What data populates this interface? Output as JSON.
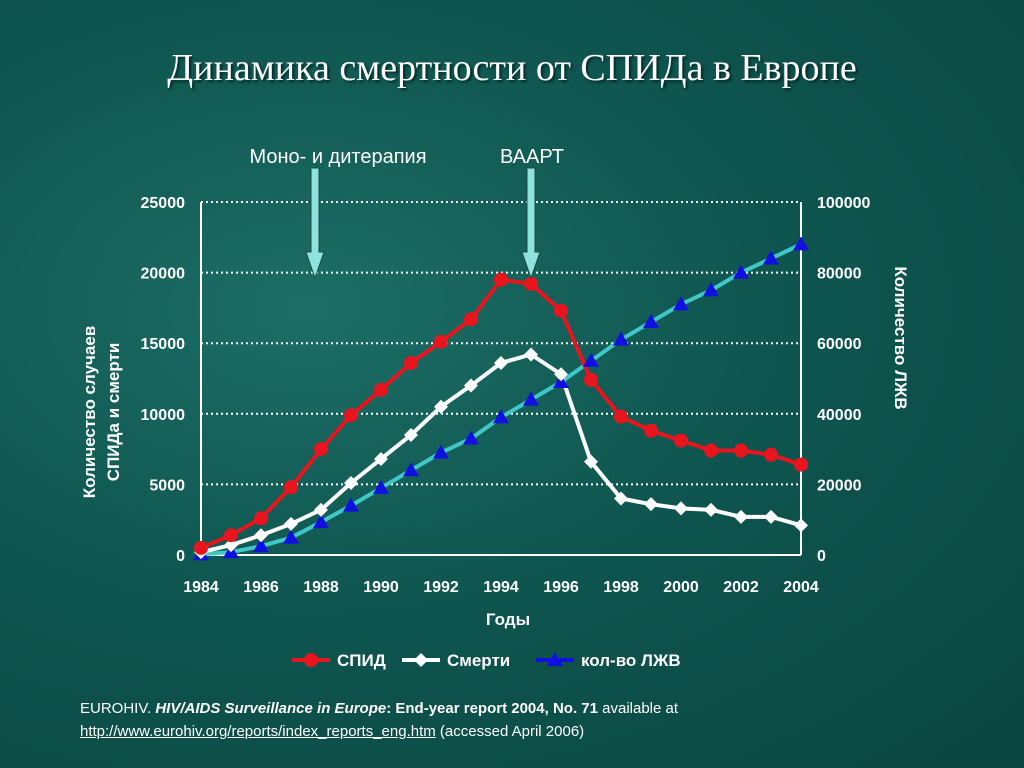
{
  "title": "Динамика смертности от СПИДа в Европе",
  "annotations": {
    "mono": "Моно- и дитерапия",
    "haart": "ВААРТ"
  },
  "colors": {
    "aids": "#e8141e",
    "deaths": "#ffffff",
    "plhiv": "#1010e0",
    "plhiv_line": "#40c8c8",
    "grid": "#ffffff"
  },
  "chart_data": {
    "type": "line",
    "xlabel": "Годы",
    "ylabel_left": "Количество случаев СПИДа и смерти",
    "ylabel_right": "Количество ЛЖВ",
    "x": [
      1984,
      1985,
      1986,
      1987,
      1988,
      1989,
      1990,
      1991,
      1992,
      1993,
      1994,
      1995,
      1996,
      1997,
      1998,
      1999,
      2000,
      2001,
      2002,
      2003,
      2004
    ],
    "x_ticks": [
      "1984",
      "1986",
      "1988",
      "1990",
      "1992",
      "1994",
      "1996",
      "1998",
      "2000",
      "2002",
      "2004"
    ],
    "ylim_left": [
      0,
      25000
    ],
    "yticks_left": [
      "0",
      "5000",
      "10000",
      "15000",
      "20000",
      "25000"
    ],
    "ylim_right": [
      0,
      100000
    ],
    "yticks_right": [
      "0",
      "20000",
      "40000",
      "60000",
      "80000",
      "100000"
    ],
    "grid": true,
    "legend_position": "bottom",
    "series": [
      {
        "name": "СПИД",
        "axis": "left",
        "marker": "circle",
        "values": [
          500,
          1400,
          2600,
          4800,
          7500,
          9900,
          11700,
          13600,
          15100,
          16700,
          19500,
          19200,
          17300,
          12400,
          9800,
          8800,
          8100,
          7400,
          7400,
          7100,
          6400
        ]
      },
      {
        "name": "Смерти",
        "axis": "left",
        "marker": "diamond",
        "values": [
          200,
          700,
          1400,
          2200,
          3200,
          5100,
          6800,
          8500,
          10500,
          12000,
          13600,
          14200,
          12800,
          6600,
          4000,
          3600,
          3300,
          3200,
          2700,
          2700,
          2100
        ]
      },
      {
        "name": "кол-во ЛЖВ",
        "axis": "right",
        "marker": "triangle",
        "values": [
          200,
          800,
          2500,
          4900,
          9300,
          14000,
          19000,
          24000,
          29000,
          33000,
          39000,
          44000,
          49000,
          55000,
          61000,
          66000,
          71000,
          75000,
          80000,
          84000,
          88000
        ]
      }
    ],
    "arrows": [
      {
        "label": "Моно- и дитерапия",
        "x": 1987.8
      },
      {
        "label": "ВААРТ",
        "x": 1995
      }
    ]
  },
  "source": {
    "org": "EUROHIV.",
    "title": "HIV/AIDS Surveillance in Europe",
    "subtitle": ": End-year report 2004, No. 71",
    "available": "available at",
    "url": "http://www.eurohiv.org/reports/index_reports_eng.htm",
    "accessed": "(accessed April  2006)"
  }
}
